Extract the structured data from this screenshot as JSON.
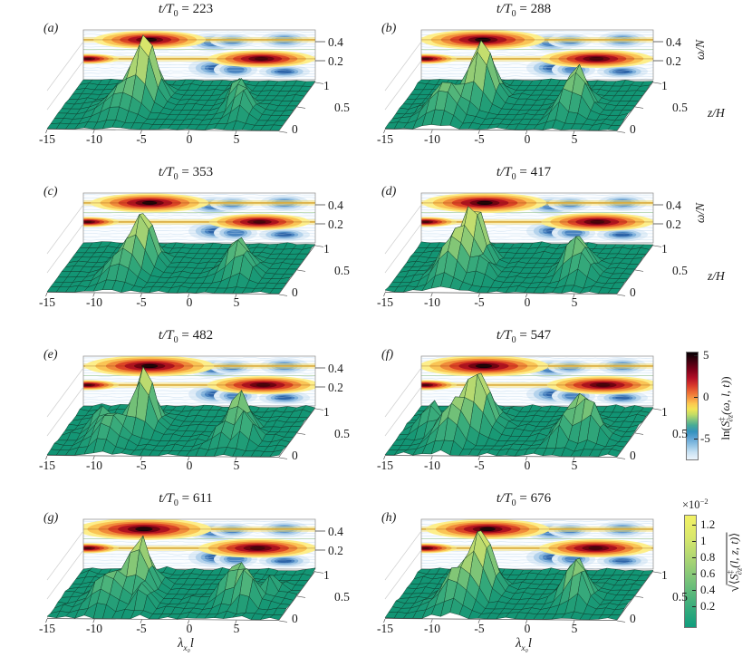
{
  "figure": {
    "panels": [
      {
        "label": "(a)",
        "t_pre": "t/T",
        "t_sub": "0",
        "t_val": " = 223",
        "show_omega_ticks": true,
        "show_axis_names": false,
        "show_xlabel": false
      },
      {
        "label": "(b)",
        "t_pre": "t/T",
        "t_sub": "0",
        "t_val": " = 288",
        "show_omega_ticks": true,
        "show_axis_names": true,
        "show_xlabel": false
      },
      {
        "label": "(c)",
        "t_pre": "t/T",
        "t_sub": "0",
        "t_val": " = 353",
        "show_omega_ticks": true,
        "show_axis_names": false,
        "show_xlabel": false
      },
      {
        "label": "(d)",
        "t_pre": "t/T",
        "t_sub": "0",
        "t_val": " = 417",
        "show_omega_ticks": true,
        "show_axis_names": true,
        "show_xlabel": false
      },
      {
        "label": "(e)",
        "t_pre": "t/T",
        "t_sub": "0",
        "t_val": " = 482",
        "show_omega_ticks": true,
        "show_axis_names": false,
        "show_xlabel": false
      },
      {
        "label": "(f)",
        "t_pre": "t/T",
        "t_sub": "0",
        "t_val": " = 547",
        "show_omega_ticks": false,
        "show_axis_names": false,
        "show_xlabel": false
      },
      {
        "label": "(g)",
        "t_pre": "t/T",
        "t_sub": "0",
        "t_val": " = 611",
        "show_omega_ticks": true,
        "show_axis_names": false,
        "show_xlabel": true
      },
      {
        "label": "(h)",
        "t_pre": "t/T",
        "t_sub": "0",
        "t_val": " = 676",
        "show_omega_ticks": false,
        "show_axis_names": false,
        "show_xlabel": true
      }
    ]
  },
  "axes": {
    "x_ticks": [
      "-15",
      "-10",
      "-5",
      "0",
      "5"
    ],
    "z_ticks": [
      "1",
      "0.5",
      "0"
    ],
    "omega_ticks": [
      "0.4",
      "0.2"
    ],
    "omega_name": "ω/N",
    "z_name": "z/H",
    "x_name": {
      "lambda": "λ",
      "sub": "x₀",
      "l": "l"
    }
  },
  "colorbars": [
    {
      "name": "contour-wall-colorbar",
      "ticks": [
        "5",
        "0",
        "-5"
      ],
      "label": {
        "pre": "ln",
        "open": "(",
        "S": "S",
        "sup": "‡",
        "sub": "∂z",
        "args": "(ω, l, t)",
        "close": ")"
      },
      "stops": [
        {
          "color": "#050003",
          "at": "0%"
        },
        {
          "color": "#40000f",
          "at": "8%"
        },
        {
          "color": "#7c0019",
          "at": "16%"
        },
        {
          "color": "#b30f27",
          "at": "24%"
        },
        {
          "color": "#d93a2b",
          "at": "31%"
        },
        {
          "color": "#ec6a33",
          "at": "37%"
        },
        {
          "color": "#f79a43",
          "at": "43%"
        },
        {
          "color": "#fcc94f",
          "at": "48%"
        },
        {
          "color": "#f2e455",
          "at": "53%"
        },
        {
          "color": "#c3dd66",
          "at": "58%"
        },
        {
          "color": "#82c47f",
          "at": "63%"
        },
        {
          "color": "#47ab96",
          "at": "68%"
        },
        {
          "color": "#3391bd",
          "at": "74%"
        },
        {
          "color": "#5ea3d3",
          "at": "80%"
        },
        {
          "color": "#93c4e5",
          "at": "87%"
        },
        {
          "color": "#c6e0f2",
          "at": "93%"
        },
        {
          "color": "#ecf5fc",
          "at": "100%"
        }
      ]
    },
    {
      "name": "surface-colorbar",
      "multiplier": {
        "base": "×10",
        "exp": "−2"
      },
      "ticks": [
        "1.2",
        "1",
        "0.8",
        "0.6",
        "0.4",
        "0.2"
      ],
      "label": {
        "sqrt": "√",
        "open": "⟨",
        "S": "S",
        "sup": "‡",
        "sub": "∂z",
        "args": "(l, z, t)",
        "close": "⟩"
      },
      "stops": [
        {
          "color": "#f2f164",
          "at": "0%"
        },
        {
          "color": "#d8e76c",
          "at": "20%"
        },
        {
          "color": "#a9d474",
          "at": "40%"
        },
        {
          "color": "#74c17a",
          "at": "60%"
        },
        {
          "color": "#3eae7c",
          "at": "80%"
        },
        {
          "color": "#109d7d",
          "at": "100%"
        }
      ]
    }
  ],
  "chart_data": {
    "type": "3d-surface-with-contour-wall",
    "description": "Eight 3D panels: green surface of vertical-shear spectra vs (λ_x0 l, z/H) with a filled-contour wall of ln spectra vs (λ_x0 l, ω/N) behind, at eight times t/T0.",
    "x_axis": {
      "label": "λ_x0 l",
      "range": [
        -15,
        9.5
      ],
      "ticks": [
        -15,
        -10,
        -5,
        0,
        5
      ]
    },
    "depth_axis": {
      "label": "z/H",
      "range": [
        0,
        1
      ],
      "ticks": [
        0,
        0.5,
        1
      ]
    },
    "wall_axis": {
      "label": "ω/N",
      "range": [
        0,
        0.52
      ],
      "ticks": [
        0.2,
        0.4
      ]
    },
    "wall_quantity": "ln(S‡_∂z(ω, l, t))",
    "wall_value_range": [
      -8,
      5
    ],
    "surface_quantity": "√⟨S‡_∂z(l, z, t)⟩",
    "surface_scale": "×10⁻²",
    "surface_value_range": [
      0,
      1.3
    ],
    "surface_colormap": [
      "#119c7a",
      "#3eae7c",
      "#a5d273",
      "#eeee67"
    ],
    "panels": [
      {
        "label": "(a)",
        "t_over_T0": 223,
        "seed": 1,
        "roughness": 0.015,
        "surface_peaks": [
          {
            "l": -6.8,
            "zH": 0.58,
            "sl": 1.5,
            "sz": 0.17,
            "amp": 0.92
          },
          {
            "l": -8.6,
            "zH": 0.38,
            "sl": 2.2,
            "sz": 0.22,
            "amp": 0.35
          },
          {
            "l": 3.1,
            "zH": 0.5,
            "sl": 1.0,
            "sz": 0.13,
            "amp": 0.42
          },
          {
            "l": 4.4,
            "zH": 0.32,
            "sl": 1.2,
            "sz": 0.16,
            "amp": 0.38
          },
          {
            "l": 2.3,
            "zH": 0.72,
            "sl": 0.8,
            "sz": 0.1,
            "amp": 0.25
          }
        ],
        "wall_hotspots": [
          {
            "l": -8.0,
            "omega": 0.42,
            "scale": 1.0,
            "core": "black"
          },
          {
            "l": 3.8,
            "omega": 0.22,
            "scale": 0.95,
            "core": "dark"
          }
        ]
      },
      {
        "label": "(b)",
        "t_over_T0": 288,
        "seed": 2,
        "roughness": 0.02,
        "surface_peaks": [
          {
            "l": -7.0,
            "zH": 0.58,
            "sl": 1.6,
            "sz": 0.18,
            "amp": 0.9
          },
          {
            "l": -9.8,
            "zH": 0.28,
            "sl": 2.0,
            "sz": 0.2,
            "amp": 0.5
          },
          {
            "l": 3.4,
            "zH": 0.5,
            "sl": 1.2,
            "sz": 0.15,
            "amp": 0.6
          },
          {
            "l": 2.6,
            "zH": 0.28,
            "sl": 1.0,
            "sz": 0.14,
            "amp": 0.35
          },
          {
            "l": 4.6,
            "zH": 0.35,
            "sl": 1.0,
            "sz": 0.12,
            "amp": 0.3
          }
        ],
        "wall_hotspots": [
          {
            "l": -8.5,
            "omega": 0.42,
            "scale": 1.1,
            "core": "black"
          },
          {
            "l": 3.5,
            "omega": 0.22,
            "scale": 1.0,
            "core": "dark"
          }
        ]
      },
      {
        "label": "(c)",
        "t_over_T0": 353,
        "seed": 3,
        "roughness": 0.02,
        "surface_peaks": [
          {
            "l": -6.9,
            "zH": 0.55,
            "sl": 1.4,
            "sz": 0.16,
            "amp": 0.78
          },
          {
            "l": -8.3,
            "zH": 0.32,
            "sl": 1.8,
            "sz": 0.2,
            "amp": 0.4
          },
          {
            "l": 3.4,
            "zH": 0.45,
            "sl": 1.5,
            "sz": 0.16,
            "amp": 0.52
          },
          {
            "l": 4.8,
            "zH": 0.3,
            "sl": 1.0,
            "sz": 0.12,
            "amp": 0.25
          }
        ],
        "wall_hotspots": [
          {
            "l": -8.0,
            "omega": 0.42,
            "scale": 1.05,
            "core": "black"
          },
          {
            "l": 3.6,
            "omega": 0.22,
            "scale": 0.9,
            "core": "dark"
          }
        ]
      },
      {
        "label": "(d)",
        "t_over_T0": 417,
        "seed": 4,
        "roughness": 0.025,
        "surface_peaks": [
          {
            "l": -7.6,
            "zH": 0.55,
            "sl": 1.4,
            "sz": 0.17,
            "amp": 0.85
          },
          {
            "l": -9.2,
            "zH": 0.32,
            "sl": 1.7,
            "sz": 0.22,
            "amp": 0.6
          },
          {
            "l": -5.8,
            "zH": 0.3,
            "sl": 1.0,
            "sz": 0.13,
            "amp": 0.3
          },
          {
            "l": 3.5,
            "zH": 0.45,
            "sl": 1.6,
            "sz": 0.17,
            "amp": 0.55
          },
          {
            "l": 4.8,
            "zH": 0.28,
            "sl": 1.0,
            "sz": 0.12,
            "amp": 0.28
          }
        ],
        "wall_hotspots": [
          {
            "l": -8.3,
            "omega": 0.42,
            "scale": 1.1,
            "core": "black"
          },
          {
            "l": 3.6,
            "omega": 0.22,
            "scale": 1.0,
            "core": "dark"
          }
        ]
      },
      {
        "label": "(e)",
        "t_over_T0": 482,
        "seed": 5,
        "roughness": 0.035,
        "surface_peaks": [
          {
            "l": -7.0,
            "zH": 0.58,
            "sl": 1.4,
            "sz": 0.16,
            "amp": 0.88
          },
          {
            "l": -9.6,
            "zH": 0.3,
            "sl": 1.8,
            "sz": 0.2,
            "amp": 0.42
          },
          {
            "l": -11.5,
            "zH": 0.52,
            "sl": 1.2,
            "sz": 0.14,
            "amp": 0.3
          },
          {
            "l": 3.3,
            "zH": 0.5,
            "sl": 1.3,
            "sz": 0.15,
            "amp": 0.62
          },
          {
            "l": 4.7,
            "zH": 0.3,
            "sl": 1.1,
            "sz": 0.13,
            "amp": 0.42
          },
          {
            "l": 2.2,
            "zH": 0.26,
            "sl": 0.9,
            "sz": 0.11,
            "amp": 0.28
          }
        ],
        "wall_hotspots": [
          {
            "l": -8.0,
            "omega": 0.42,
            "scale": 1.15,
            "core": "black"
          },
          {
            "l": 4.0,
            "omega": 0.22,
            "scale": 1.0,
            "core": "dark"
          }
        ]
      },
      {
        "label": "(f)",
        "t_over_T0": 547,
        "seed": 6,
        "roughness": 0.04,
        "surface_peaks": [
          {
            "l": -7.3,
            "zH": 0.55,
            "sl": 1.8,
            "sz": 0.18,
            "amp": 0.82
          },
          {
            "l": -9.2,
            "zH": 0.3,
            "sl": 1.8,
            "sz": 0.2,
            "amp": 0.5
          },
          {
            "l": -12.3,
            "zH": 0.55,
            "sl": 1.3,
            "sz": 0.15,
            "amp": 0.38
          },
          {
            "l": 3.7,
            "zH": 0.48,
            "sl": 1.8,
            "sz": 0.17,
            "amp": 0.55
          },
          {
            "l": 5.6,
            "zH": 0.35,
            "sl": 1.2,
            "sz": 0.13,
            "amp": 0.4
          },
          {
            "l": 2.4,
            "zH": 0.25,
            "sl": 1.0,
            "sz": 0.12,
            "amp": 0.3
          }
        ],
        "wall_hotspots": [
          {
            "l": -8.4,
            "omega": 0.42,
            "scale": 1.15,
            "core": "black"
          },
          {
            "l": 4.2,
            "omega": 0.22,
            "scale": 1.0,
            "core": "dark"
          }
        ]
      },
      {
        "label": "(g)",
        "t_over_T0": 611,
        "seed": 7,
        "roughness": 0.045,
        "surface_peaks": [
          {
            "l": -7.4,
            "zH": 0.58,
            "sl": 1.5,
            "sz": 0.17,
            "amp": 0.78
          },
          {
            "l": -9.9,
            "zH": 0.33,
            "sl": 1.8,
            "sz": 0.2,
            "amp": 0.45
          },
          {
            "l": -5.9,
            "zH": 0.26,
            "sl": 1.1,
            "sz": 0.13,
            "amp": 0.32
          },
          {
            "l": 3.1,
            "zH": 0.45,
            "sl": 1.6,
            "sz": 0.16,
            "amp": 0.52
          },
          {
            "l": 5.1,
            "zH": 0.3,
            "sl": 1.2,
            "sz": 0.13,
            "amp": 0.45
          },
          {
            "l": 6.6,
            "zH": 0.55,
            "sl": 1.0,
            "sz": 0.12,
            "amp": 0.3
          }
        ],
        "wall_hotspots": [
          {
            "l": -8.6,
            "omega": 0.42,
            "scale": 1.2,
            "core": "black"
          },
          {
            "l": 3.4,
            "omega": 0.22,
            "scale": 1.05,
            "core": "dark"
          }
        ]
      },
      {
        "label": "(h)",
        "t_over_T0": 676,
        "seed": 8,
        "roughness": 0.03,
        "surface_peaks": [
          {
            "l": -6.9,
            "zH": 0.55,
            "sl": 1.5,
            "sz": 0.17,
            "amp": 0.92
          },
          {
            "l": -8.6,
            "zH": 0.3,
            "sl": 2.0,
            "sz": 0.2,
            "amp": 0.55
          },
          {
            "l": 3.3,
            "zH": 0.45,
            "sl": 1.4,
            "sz": 0.16,
            "amp": 0.6
          },
          {
            "l": 4.6,
            "zH": 0.3,
            "sl": 1.1,
            "sz": 0.13,
            "amp": 0.35
          }
        ],
        "wall_hotspots": [
          {
            "l": -8.0,
            "omega": 0.42,
            "scale": 1.1,
            "core": "black"
          },
          {
            "l": 3.4,
            "omega": 0.22,
            "scale": 1.0,
            "core": "dark"
          }
        ]
      }
    ]
  }
}
